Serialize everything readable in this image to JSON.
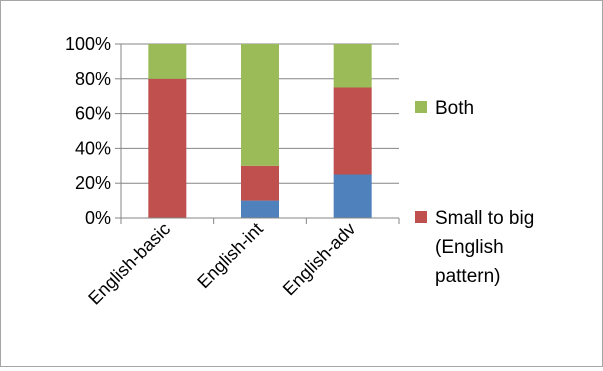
{
  "chart_data": {
    "type": "bar",
    "stacked": true,
    "percent_stacked": true,
    "categories": [
      "English-basic",
      "English-int",
      "English-adv"
    ],
    "series": [
      {
        "name": "",
        "color": "#4f81bd",
        "values": [
          0,
          10,
          25
        ]
      },
      {
        "name": "Small to big (English pattern)",
        "legend_lines": [
          "Small to big",
          "(English",
          "pattern)"
        ],
        "color": "#c0504d",
        "values": [
          80,
          20,
          50
        ]
      },
      {
        "name": "Both",
        "legend_lines": [
          "Both"
        ],
        "color": "#9bbb59",
        "values": [
          20,
          70,
          25
        ]
      }
    ],
    "y_ticks": [
      "0%",
      "20%",
      "40%",
      "60%",
      "80%",
      "100%"
    ],
    "ylim": [
      0,
      100
    ],
    "grid": true,
    "legend_position": "right"
  }
}
